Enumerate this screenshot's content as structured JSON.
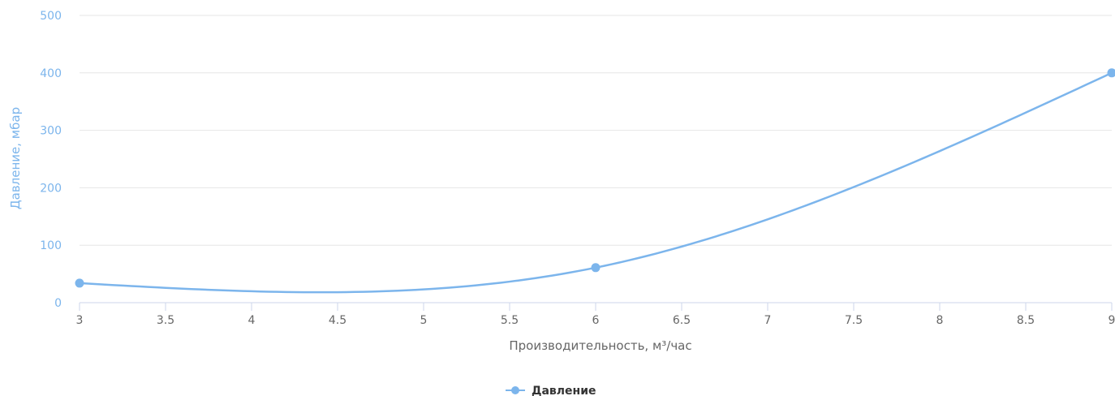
{
  "chart_data": {
    "type": "line",
    "title": "",
    "xlabel": "Производительность, м³/час",
    "ylabel": "Давление, мбар",
    "xlim": [
      3,
      9
    ],
    "ylim": [
      0,
      500
    ],
    "x_ticks": [
      "3",
      "3.5",
      "4",
      "4.5",
      "5",
      "5.5",
      "6",
      "6.5",
      "7",
      "7.5",
      "8",
      "8.5",
      "9"
    ],
    "y_ticks": [
      "0",
      "100",
      "200",
      "300",
      "400",
      "500"
    ],
    "grid": true,
    "legend": "bottom-center",
    "series": [
      {
        "name": "Давление",
        "color": "#7cb5ec",
        "x": [
          3,
          6,
          9
        ],
        "y": [
          34,
          61,
          400
        ]
      }
    ]
  }
}
